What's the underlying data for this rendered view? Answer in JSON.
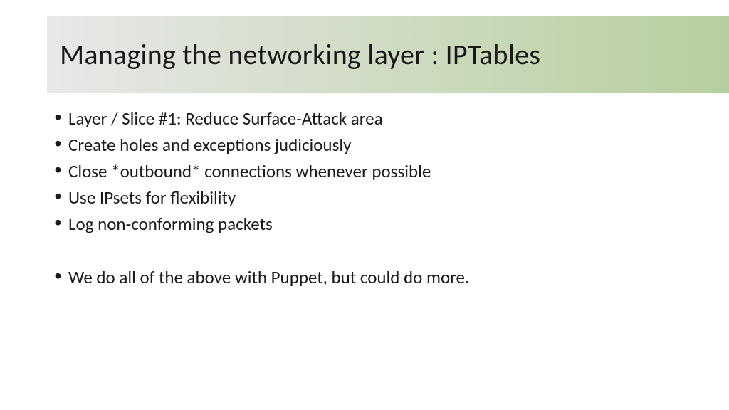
{
  "slide": {
    "title": "Managing the networking layer : IPTables",
    "title_color": "#1a1a1a",
    "title_fontsize": 40,
    "title_bar_gradient_start": "#e8e8e8",
    "title_bar_gradient_end": "#b6cf9e",
    "body_color": "#1a1a1a",
    "body_fontsize": 25,
    "background_color": "#ffffff",
    "bullets_group1": [
      "Layer / Slice #1: Reduce Surface-Attack area",
      "Create holes and exceptions judiciously",
      "Close *outbound* connections whenever possible",
      "Use IPsets for flexibility",
      "Log non-conforming packets"
    ],
    "bullets_group2": [
      "We do all of the above with Puppet, but could do more."
    ]
  }
}
